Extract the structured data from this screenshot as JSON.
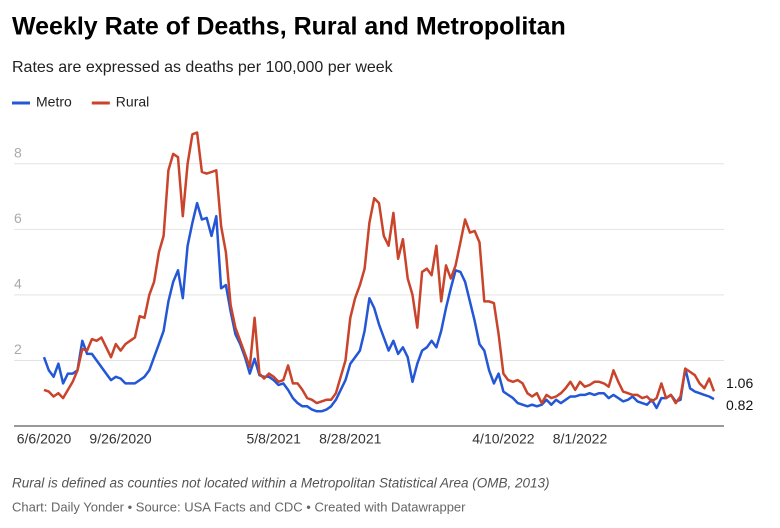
{
  "chart_data": {
    "type": "line",
    "title": "Weekly Rate of Deaths, Rural and Metropolitan",
    "subtitle": "Rates are expressed as deaths per 100,000 per week",
    "notes": "Rural is defined as counties not located within a Metropolitan Statistical Area (OMB, 2013)",
    "source": "Chart: Daily Yonder • Source: USA Facts and CDC • Created with Datawrapper",
    "categories": [
      "6/6/2020",
      null,
      null,
      null,
      null,
      null,
      null,
      null,
      null,
      null,
      null,
      null,
      null,
      null,
      null,
      null,
      "9/26/2020",
      null,
      null,
      null,
      null,
      null,
      null,
      null,
      null,
      null,
      null,
      null,
      null,
      null,
      null,
      null,
      null,
      null,
      null,
      null,
      null,
      null,
      null,
      null,
      null,
      null,
      null,
      null,
      null,
      null,
      null,
      null,
      "5/8/2021",
      null,
      null,
      null,
      null,
      null,
      null,
      null,
      null,
      null,
      null,
      null,
      null,
      null,
      null,
      null,
      "8/28/2021",
      null,
      null,
      null,
      null,
      null,
      null,
      null,
      null,
      null,
      null,
      null,
      null,
      null,
      null,
      null,
      null,
      null,
      null,
      null,
      null,
      null,
      null,
      null,
      null,
      null,
      null,
      null,
      null,
      null,
      null,
      null,
      "4/10/2022",
      null,
      null,
      null,
      null,
      null,
      null,
      null,
      null,
      null,
      null,
      null,
      null,
      null,
      null,
      null,
      "8/1/2022",
      null,
      null,
      null,
      null,
      null,
      null,
      null,
      null,
      null,
      null,
      null,
      null,
      null,
      null,
      null,
      null,
      null,
      null,
      null,
      null,
      null,
      null,
      null,
      null,
      null,
      null,
      null,
      null
    ],
    "series": [
      {
        "name": "Metro",
        "color": "#2457d6",
        "values": [
          2.1,
          1.7,
          1.5,
          1.9,
          1.3,
          1.6,
          1.6,
          1.7,
          2.6,
          2.2,
          2.2,
          2.0,
          1.8,
          1.6,
          1.4,
          1.5,
          1.45,
          1.3,
          1.3,
          1.3,
          1.4,
          1.5,
          1.7,
          2.1,
          2.5,
          2.9,
          3.8,
          4.4,
          4.75,
          3.9,
          5.5,
          6.2,
          6.8,
          6.3,
          6.35,
          5.8,
          6.4,
          4.2,
          4.3,
          3.5,
          2.8,
          2.5,
          2.1,
          1.6,
          2.05,
          1.55,
          1.5,
          1.5,
          1.4,
          1.25,
          1.3,
          1.1,
          0.85,
          0.7,
          0.6,
          0.6,
          0.5,
          0.45,
          0.45,
          0.5,
          0.6,
          0.8,
          1.1,
          1.4,
          1.9,
          2.1,
          2.3,
          2.9,
          3.9,
          3.6,
          3.1,
          2.7,
          2.3,
          2.6,
          2.2,
          2.4,
          2.1,
          1.35,
          1.9,
          2.3,
          2.4,
          2.6,
          2.4,
          2.9,
          3.6,
          4.2,
          4.75,
          4.7,
          4.4,
          3.8,
          3.2,
          2.5,
          2.3,
          1.7,
          1.3,
          1.6,
          1.05,
          0.95,
          0.85,
          0.7,
          0.65,
          0.6,
          0.65,
          0.6,
          0.65,
          0.8,
          0.65,
          0.8,
          0.7,
          0.8,
          0.9,
          0.9,
          0.95,
          0.95,
          1.0,
          0.95,
          1.0,
          1.0,
          0.85,
          0.95,
          0.85,
          0.75,
          0.8,
          0.9,
          0.75,
          0.7,
          0.65,
          0.8,
          0.55,
          0.85,
          0.85,
          0.95,
          0.75,
          0.8,
          1.75,
          1.15,
          1.05,
          1.0,
          0.95,
          0.9,
          0.82
        ]
      },
      {
        "name": "Rural",
        "color": "#c9442a",
        "values": [
          1.1,
          1.05,
          0.9,
          1.0,
          0.85,
          1.1,
          1.35,
          1.7,
          2.35,
          2.3,
          2.65,
          2.6,
          2.7,
          2.4,
          2.1,
          2.5,
          2.3,
          2.5,
          2.6,
          2.7,
          3.35,
          3.3,
          4.0,
          4.4,
          5.3,
          5.8,
          7.8,
          8.3,
          8.2,
          6.4,
          8.0,
          8.9,
          8.95,
          7.75,
          7.7,
          7.75,
          7.8,
          6.1,
          5.3,
          3.7,
          3.0,
          2.6,
          2.2,
          1.8,
          3.3,
          1.6,
          1.45,
          1.6,
          1.5,
          1.35,
          1.4,
          1.85,
          1.3,
          1.3,
          1.1,
          0.85,
          0.8,
          0.7,
          0.75,
          0.8,
          0.8,
          1.0,
          1.5,
          2.0,
          3.3,
          3.9,
          4.3,
          4.8,
          6.2,
          6.95,
          6.8,
          5.8,
          5.5,
          6.5,
          5.1,
          5.7,
          4.5,
          4.0,
          3.0,
          4.7,
          4.8,
          4.6,
          5.5,
          3.8,
          4.9,
          4.5,
          4.9,
          5.6,
          6.3,
          5.9,
          5.95,
          5.6,
          3.8,
          3.8,
          3.75,
          2.8,
          1.6,
          1.4,
          1.35,
          1.4,
          1.3,
          1.0,
          0.9,
          1.0,
          0.7,
          0.95,
          0.85,
          0.9,
          1.0,
          1.15,
          1.35,
          1.1,
          1.35,
          1.2,
          1.25,
          1.35,
          1.35,
          1.3,
          1.2,
          1.7,
          1.35,
          1.05,
          1.0,
          0.95,
          0.95,
          0.85,
          0.9,
          0.75,
          0.85,
          1.3,
          0.85,
          0.95,
          0.7,
          0.9,
          1.75,
          1.65,
          1.55,
          1.3,
          1.15,
          1.45,
          1.06
        ]
      }
    ],
    "ylim": [
      0,
      9
    ],
    "yticks": [
      2,
      4,
      6,
      8
    ],
    "grid": true
  }
}
